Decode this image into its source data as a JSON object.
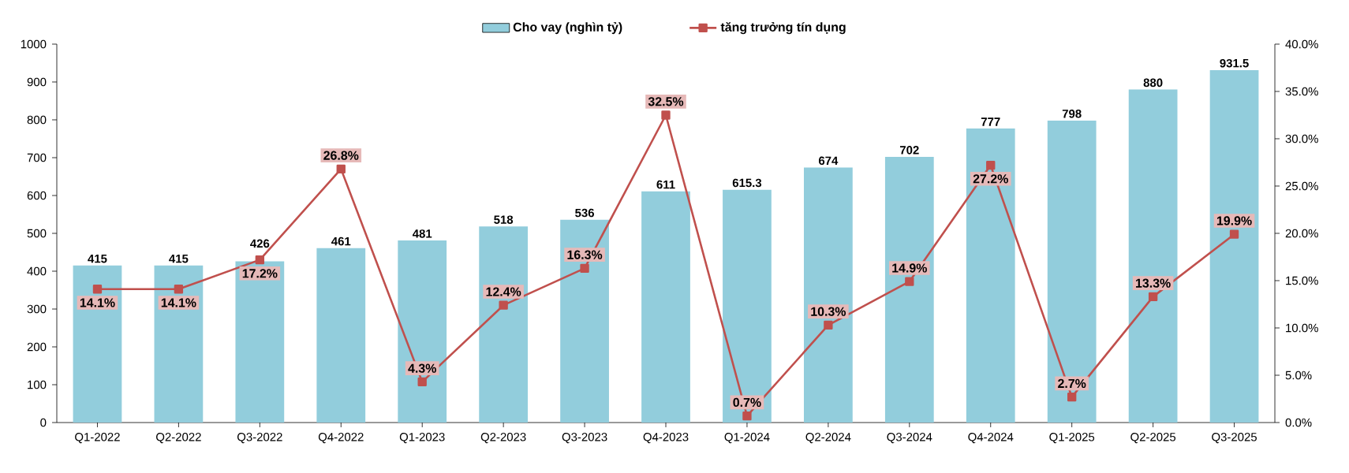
{
  "chart_data": {
    "type": "bar",
    "categories": [
      "Q1-2022",
      "Q2-2022",
      "Q3-2022",
      "Q4-2022",
      "Q1-2023",
      "Q2-2023",
      "Q3-2023",
      "Q4-2023",
      "Q1-2024",
      "Q2-2024",
      "Q3-2024",
      "Q4-2024",
      "Q1-2025",
      "Q2-2025",
      "Q3-2025"
    ],
    "series": [
      {
        "name": "Cho vay (nghìn tỷ)",
        "color": "#92cddc",
        "values": [
          415,
          415,
          426,
          461,
          481,
          518,
          536,
          611,
          615.3,
          674,
          702,
          777,
          798,
          880,
          931.5
        ],
        "value_labels": [
          "415",
          "415",
          "426",
          "461",
          "481",
          "518",
          "536",
          "611",
          "615.3",
          "674",
          "702",
          "777",
          "798",
          "880",
          "931.5"
        ]
      },
      {
        "name": "tăng trưởng tín dụng",
        "type": "line",
        "axis": "y2",
        "color": "#c0504d",
        "marker": "square",
        "line_style": "solid",
        "values": [
          14.1,
          14.1,
          17.2,
          26.8,
          4.3,
          12.4,
          16.3,
          32.5,
          0.7,
          10.3,
          14.9,
          27.2,
          2.7,
          13.3,
          19.9
        ],
        "value_labels": [
          "14.1%",
          "14.1%",
          "17.2%",
          "26.8%",
          "4.3%",
          "12.4%",
          "16.3%",
          "32.5%",
          "0.7%",
          "10.3%",
          "14.9%",
          "27.2%",
          "2.7%",
          "13.3%",
          "19.9%"
        ]
      }
    ],
    "ylim": [
      0,
      1000
    ],
    "yticks": [
      0,
      100,
      200,
      300,
      400,
      500,
      600,
      700,
      800,
      900,
      1000
    ],
    "y2lim": [
      0,
      40
    ],
    "y2ticks": [
      {
        "value": 0,
        "label": "0.0%"
      },
      {
        "value": 5,
        "label": "5.0%"
      },
      {
        "value": 10,
        "label": "10.0%"
      },
      {
        "value": 15,
        "label": "15.0%"
      },
      {
        "value": 20,
        "label": "20.0%"
      },
      {
        "value": 25,
        "label": "25.0%"
      },
      {
        "value": 30,
        "label": "30.0%"
      },
      {
        "value": 35,
        "label": "35.0%"
      },
      {
        "value": 40,
        "label": "40.0%"
      }
    ],
    "legend": "top",
    "grid": false
  }
}
